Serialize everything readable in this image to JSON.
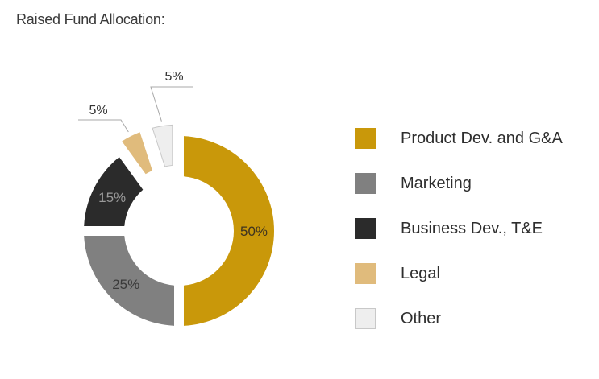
{
  "chart_data": {
    "type": "pie",
    "title": "Raised Fund Allocation:",
    "categories": [
      "Product Dev. and G&A",
      "Marketing",
      "Business Dev., T&E",
      "Legal",
      "Other"
    ],
    "values": [
      50,
      25,
      15,
      5,
      5
    ],
    "value_labels": [
      "50%",
      "25%",
      "15%",
      "5%",
      "5%"
    ],
    "colors": [
      "#c9980a",
      "#808080",
      "#2b2b2b",
      "#e0bb7c",
      "#eeeeee"
    ],
    "label_colors": [
      "#3d3320",
      "#3a3a3a",
      "#9a9a9a",
      "#333333",
      "#333333"
    ],
    "legend_position": "right",
    "style": "exploded-donut"
  }
}
